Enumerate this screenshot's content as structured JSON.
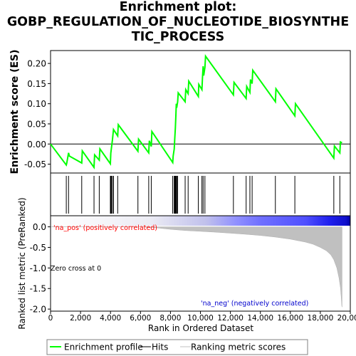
{
  "title_lines": [
    "Enrichment plot:",
    "GOBP_REGULATION_OF_NUCLEOTIDE_BIOSYNTHE",
    "TIC_PROCESS"
  ],
  "chart_data": [
    {
      "type": "line",
      "panel": "enrichment-profile",
      "ylabel": "Enrichment score (ES)",
      "xlim": [
        0,
        20000
      ],
      "ylim": [
        -0.072,
        0.232
      ],
      "yticks": [
        -0.05,
        0.0,
        0.05,
        0.1,
        0.15,
        0.2
      ],
      "ytick_labels": [
        "-0.05",
        "0.00",
        "0.05",
        "0.10",
        "0.15",
        "0.20"
      ],
      "grid": false,
      "series": [
        {
          "name": "Enrichment profile",
          "color": "#00ff00",
          "x": [
            0,
            1050,
            1080,
            1200,
            1260,
            2080,
            2120,
            2900,
            2940,
            3250,
            3290,
            3990,
            4020,
            4060,
            4130,
            4200,
            4480,
            4520,
            5830,
            5870,
            6550,
            6590,
            6720,
            6760,
            8150,
            8180,
            8250,
            8290,
            8330,
            8360,
            8390,
            8420,
            8480,
            8520,
            8980,
            9020,
            9180,
            9220,
            9860,
            9890,
            10100,
            10140,
            10180,
            10220,
            10300,
            10340,
            12200,
            12240,
            13050,
            13090,
            13300,
            13340,
            13450,
            13490,
            15000,
            15040,
            16300,
            16340,
            18900,
            18940,
            19300,
            19340,
            19450
          ],
          "y": [
            0.0,
            -0.052,
            -0.048,
            -0.022,
            -0.03,
            -0.047,
            -0.017,
            -0.058,
            -0.027,
            -0.04,
            -0.012,
            -0.049,
            -0.023,
            -0.01,
            0.01,
            0.036,
            0.02,
            0.048,
            -0.018,
            0.012,
            -0.022,
            0.008,
            -0.006,
            0.031,
            -0.046,
            -0.03,
            -0.012,
            0.015,
            0.04,
            0.07,
            0.1,
            0.09,
            0.105,
            0.127,
            0.105,
            0.135,
            0.125,
            0.156,
            0.118,
            0.148,
            0.135,
            0.165,
            0.193,
            0.17,
            0.19,
            0.218,
            0.122,
            0.153,
            0.113,
            0.143,
            0.128,
            0.16,
            0.15,
            0.183,
            0.105,
            0.137,
            0.07,
            0.1,
            -0.035,
            -0.005,
            -0.022,
            0.005,
            0.003
          ]
        }
      ]
    },
    {
      "type": "scatter",
      "panel": "hits",
      "xlim": [
        0,
        20000
      ],
      "series": [
        {
          "name": "Hits",
          "color": "#000000",
          "x": [
            1050,
            1200,
            2080,
            2900,
            3250,
            3990,
            4020,
            4060,
            4130,
            4200,
            4480,
            5830,
            6550,
            6720,
            8150,
            8250,
            8290,
            8330,
            8360,
            8390,
            8420,
            8480,
            8980,
            9180,
            9860,
            10100,
            10180,
            10300,
            12200,
            13050,
            13300,
            13450,
            15000,
            16300,
            18900,
            19300
          ]
        }
      ]
    },
    {
      "type": "area",
      "panel": "ranked-list",
      "ylabel": "Ranked list metric (PreRanked)",
      "xlabel": "Rank in Ordered Dataset",
      "xlim": [
        0,
        20000
      ],
      "ylim": [
        -2.05,
        0.27
      ],
      "xticks": [
        0,
        2000,
        4000,
        6000,
        8000,
        10000,
        12000,
        14000,
        16000,
        18000,
        20000
      ],
      "xtick_labels": [
        "0",
        "2,000",
        "4,000",
        "6,000",
        "8,000",
        "10,000",
        "12,000",
        "14,000",
        "16,000",
        "18,000",
        "20,000"
      ],
      "yticks": [
        0.0,
        -0.5,
        -1.0,
        -1.5,
        -2.0
      ],
      "ytick_labels": [
        "0.0",
        "-0.5",
        "-1.0",
        "-1.5",
        "-2.0"
      ],
      "series": [
        {
          "name": "Ranking metric scores",
          "color": "#c0c0c0",
          "x": [
            0,
            3000,
            6000,
            7000,
            8000,
            9000,
            10000,
            11000,
            12000,
            13000,
            14000,
            15000,
            16000,
            17000,
            17500,
            18000,
            18400,
            18700,
            18900,
            19100,
            19250,
            19350,
            19400,
            19430,
            19450
          ],
          "y": [
            0.0,
            0.0,
            0.0,
            -0.02,
            -0.06,
            -0.09,
            -0.11,
            -0.13,
            -0.155,
            -0.18,
            -0.21,
            -0.25,
            -0.3,
            -0.37,
            -0.42,
            -0.5,
            -0.58,
            -0.68,
            -0.8,
            -1.0,
            -1.25,
            -1.5,
            -1.75,
            -1.92,
            -1.95
          ]
        }
      ],
      "annotations": {
        "pos": "'na_pos' (positively correlated)",
        "neg": "'na_neg' (negatively correlated)",
        "zero_cross": "Zero cross at 0"
      }
    }
  ],
  "legend": {
    "placement": "bottom",
    "items": [
      {
        "label": "Enrichment profile",
        "color": "#00ff00",
        "style": "line"
      },
      {
        "label": "Hits",
        "color": "#000000",
        "style": "line"
      },
      {
        "label": "Ranking metric scores",
        "color": "#c0c0c0",
        "style": "line"
      }
    ]
  },
  "colors": {
    "pos_label": "#ff0000",
    "neg_label": "#0000cc"
  }
}
